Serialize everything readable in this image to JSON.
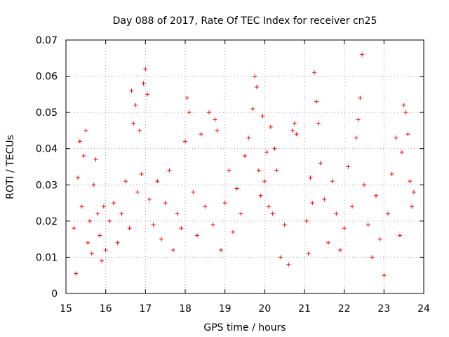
{
  "chart_data": {
    "type": "scatter",
    "title": "Day 088 of 2017, Rate Of TEC Index for receiver cn25",
    "xlabel": "GPS time / hours",
    "ylabel": "ROTI / TECUs",
    "xlim": [
      15,
      24
    ],
    "ylim": [
      0,
      0.07
    ],
    "xticks": [
      15,
      16,
      17,
      18,
      19,
      20,
      21,
      22,
      23,
      24
    ],
    "yticks": [
      0,
      0.01,
      0.02,
      0.03,
      0.04,
      0.05,
      0.06,
      0.07
    ],
    "xtick_labels": [
      "15",
      "16",
      "17",
      "18",
      "19",
      "20",
      "21",
      "22",
      "23",
      "24"
    ],
    "ytick_labels": [
      "0",
      "0.01",
      "0.02",
      "0.03",
      "0.04",
      "0.05",
      "0.06",
      "0.07"
    ],
    "grid": true,
    "marker": "+",
    "color": "#ff0000",
    "series": [
      {
        "name": "ROTI",
        "x": [
          15.2,
          15.25,
          15.3,
          15.35,
          15.4,
          15.45,
          15.5,
          15.55,
          15.6,
          15.65,
          15.7,
          15.75,
          15.8,
          15.85,
          15.9,
          15.95,
          16.0,
          16.1,
          16.2,
          16.3,
          16.4,
          16.5,
          16.6,
          16.65,
          16.7,
          16.75,
          16.8,
          16.85,
          16.9,
          16.95,
          17.0,
          17.05,
          17.1,
          17.2,
          17.3,
          17.4,
          17.5,
          17.6,
          17.7,
          17.8,
          17.9,
          18.0,
          18.05,
          18.1,
          18.2,
          18.3,
          18.4,
          18.5,
          18.6,
          18.7,
          18.75,
          18.8,
          18.9,
          19.0,
          19.1,
          19.2,
          19.3,
          19.4,
          19.5,
          19.6,
          19.7,
          19.75,
          19.8,
          19.85,
          19.9,
          19.95,
          20.0,
          20.05,
          20.1,
          20.15,
          20.2,
          20.25,
          20.3,
          20.4,
          20.5,
          20.6,
          20.7,
          20.75,
          20.8,
          21.05,
          21.1,
          21.15,
          21.2,
          21.25,
          21.3,
          21.35,
          21.4,
          21.5,
          21.6,
          21.7,
          21.8,
          21.9,
          22.0,
          22.1,
          22.2,
          22.3,
          22.35,
          22.4,
          22.45,
          22.5,
          22.6,
          22.7,
          22.8,
          22.9,
          23.0,
          23.1,
          23.2,
          23.3,
          23.4,
          23.45,
          23.5,
          23.55,
          23.6,
          23.65,
          23.7,
          23.75
        ],
        "y": [
          0.018,
          0.0055,
          0.032,
          0.042,
          0.024,
          0.038,
          0.045,
          0.014,
          0.02,
          0.011,
          0.03,
          0.037,
          0.022,
          0.016,
          0.009,
          0.024,
          0.012,
          0.02,
          0.025,
          0.014,
          0.022,
          0.031,
          0.018,
          0.056,
          0.047,
          0.052,
          0.028,
          0.045,
          0.033,
          0.058,
          0.062,
          0.055,
          0.026,
          0.019,
          0.031,
          0.015,
          0.025,
          0.034,
          0.012,
          0.022,
          0.018,
          0.042,
          0.054,
          0.05,
          0.028,
          0.016,
          0.044,
          0.024,
          0.05,
          0.019,
          0.048,
          0.045,
          0.012,
          0.025,
          0.034,
          0.017,
          0.029,
          0.022,
          0.038,
          0.043,
          0.051,
          0.06,
          0.057,
          0.034,
          0.027,
          0.049,
          0.031,
          0.039,
          0.024,
          0.046,
          0.022,
          0.04,
          0.034,
          0.01,
          0.019,
          0.008,
          0.045,
          0.047,
          0.044,
          0.02,
          0.011,
          0.032,
          0.025,
          0.061,
          0.053,
          0.047,
          0.036,
          0.026,
          0.014,
          0.031,
          0.022,
          0.012,
          0.018,
          0.035,
          0.024,
          0.043,
          0.048,
          0.054,
          0.066,
          0.03,
          0.019,
          0.01,
          0.027,
          0.015,
          0.005,
          0.022,
          0.033,
          0.043,
          0.016,
          0.039,
          0.052,
          0.05,
          0.044,
          0.031,
          0.024,
          0.028
        ]
      }
    ]
  }
}
